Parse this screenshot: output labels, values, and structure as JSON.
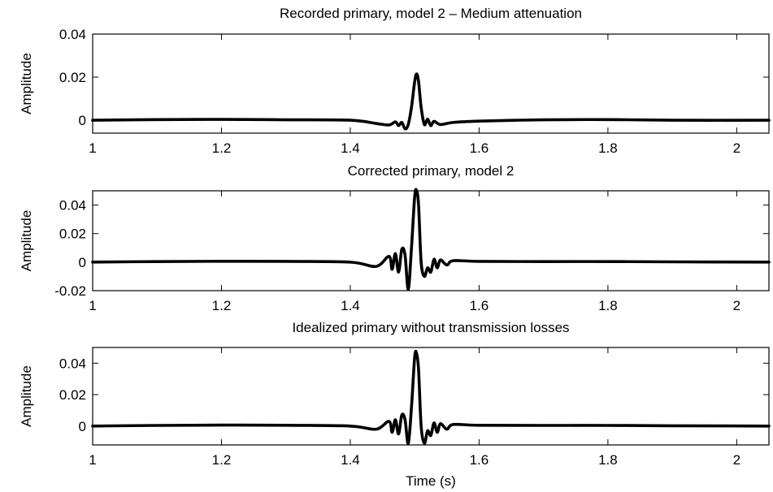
{
  "chart_data": [
    {
      "type": "line",
      "title": "Recorded primary, model 2 – Medium attenuation",
      "xlabel": "",
      "ylabel": "Amplitude",
      "xlim": [
        1,
        2.05
      ],
      "ylim": [
        -0.006,
        0.04
      ],
      "xticks": [
        1,
        1.2,
        1.4,
        1.6,
        1.8,
        2
      ],
      "xtick_labels": [
        "1",
        "1.2",
        "1.4",
        "1.6",
        "1.8",
        "2"
      ],
      "yticks": [
        0,
        0.02,
        0.04
      ],
      "ytick_labels": [
        "0",
        "0.02",
        "0.04"
      ],
      "series": [
        {
          "x": [
            1.0,
            1.1,
            1.2,
            1.3,
            1.4,
            1.44,
            1.46,
            1.47,
            1.475,
            1.48,
            1.485,
            1.49,
            1.495,
            1.5,
            1.503,
            1.506,
            1.51,
            1.515,
            1.52,
            1.525,
            1.53,
            1.54,
            1.56,
            1.6,
            1.7,
            1.8,
            1.9,
            2.05
          ],
          "y": [
            0.0,
            0.0003,
            0.0004,
            0.0002,
            0.0,
            -0.0015,
            -0.0022,
            -0.0008,
            -0.0025,
            -0.001,
            -0.004,
            -0.002,
            0.006,
            0.018,
            0.0215,
            0.018,
            0.006,
            -0.002,
            0.0005,
            -0.0025,
            -0.0005,
            -0.002,
            -0.001,
            -0.0004,
            0.0002,
            0.0003,
            0.0,
            0.0
          ]
        }
      ]
    },
    {
      "type": "line",
      "title": "Corrected primary, model 2",
      "xlabel": "",
      "ylabel": "Amplitude",
      "xlim": [
        1,
        2.05
      ],
      "ylim": [
        -0.02,
        0.05
      ],
      "xticks": [
        1,
        1.2,
        1.4,
        1.6,
        1.8,
        2
      ],
      "xtick_labels": [
        "1",
        "1.2",
        "1.4",
        "1.6",
        "1.8",
        "2"
      ],
      "yticks": [
        -0.02,
        0,
        0.02,
        0.04
      ],
      "ytick_labels": [
        "-0.02",
        "0",
        "0.02",
        "0.04"
      ],
      "series": [
        {
          "x": [
            1.0,
            1.1,
            1.2,
            1.3,
            1.4,
            1.44,
            1.46,
            1.465,
            1.47,
            1.475,
            1.48,
            1.485,
            1.49,
            1.495,
            1.5,
            1.503,
            1.506,
            1.51,
            1.515,
            1.52,
            1.525,
            1.53,
            1.535,
            1.54,
            1.55,
            1.56,
            1.6,
            1.7,
            1.8,
            1.9,
            2.05
          ],
          "y": [
            0.0,
            0.0004,
            0.0006,
            0.0005,
            0.0,
            -0.003,
            0.004,
            -0.005,
            0.006,
            -0.007,
            0.009,
            0.005,
            -0.019,
            0.01,
            0.046,
            0.05,
            0.04,
            0.0,
            -0.01,
            -0.004,
            -0.007,
            0.002,
            -0.004,
            0.0015,
            -0.002,
            0.001,
            0.0005,
            0.0004,
            0.0004,
            0.0002,
            0.0
          ]
        }
      ]
    },
    {
      "type": "line",
      "title": "Idealized primary without transmission losses",
      "xlabel": "Time (s)",
      "ylabel": "Amplitude",
      "xlim": [
        1,
        2.05
      ],
      "ylim": [
        -0.012,
        0.05
      ],
      "xticks": [
        1,
        1.2,
        1.4,
        1.6,
        1.8,
        2
      ],
      "xtick_labels": [
        "1",
        "1.2",
        "1.4",
        "1.6",
        "1.8",
        "2"
      ],
      "yticks": [
        0,
        0.02,
        0.04
      ],
      "ytick_labels": [
        "0",
        "0.02",
        "0.04"
      ],
      "series": [
        {
          "x": [
            1.0,
            1.1,
            1.2,
            1.3,
            1.4,
            1.44,
            1.46,
            1.465,
            1.47,
            1.475,
            1.48,
            1.485,
            1.49,
            1.495,
            1.5,
            1.503,
            1.506,
            1.51,
            1.515,
            1.52,
            1.525,
            1.53,
            1.535,
            1.54,
            1.55,
            1.56,
            1.6,
            1.7,
            1.8,
            1.9,
            2.05
          ],
          "y": [
            0.0,
            0.0004,
            0.0006,
            0.0005,
            0.0,
            -0.002,
            0.003,
            -0.004,
            0.004,
            -0.005,
            0.007,
            0.004,
            -0.011,
            0.012,
            0.044,
            0.046,
            0.036,
            0.0,
            -0.011,
            -0.003,
            -0.006,
            0.002,
            -0.004,
            0.0015,
            -0.002,
            0.001,
            0.0005,
            0.0004,
            0.0004,
            0.0002,
            0.0
          ]
        }
      ]
    }
  ]
}
